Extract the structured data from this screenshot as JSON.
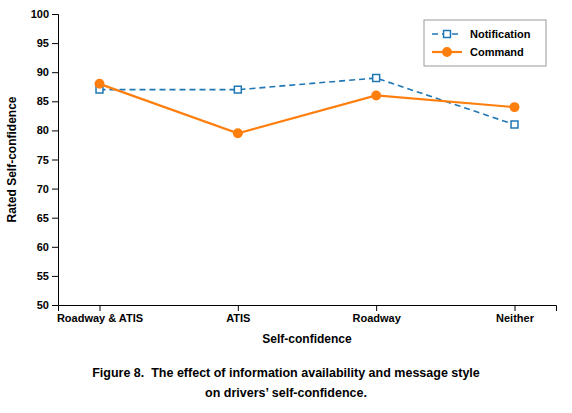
{
  "chart_data": {
    "type": "line",
    "categories": [
      "Roadway & ATIS",
      "ATIS",
      "Roadway",
      "Neither"
    ],
    "series": [
      {
        "name": "Notification",
        "values": [
          87,
          87,
          89,
          81
        ],
        "marker": "square",
        "line_style": "dashed"
      },
      {
        "name": "Command",
        "values": [
          88,
          79.5,
          86,
          84
        ],
        "marker": "circle",
        "line_style": "solid"
      }
    ],
    "xlabel": "Self-confidence",
    "ylabel": "Rated Self-confidence",
    "ylim": [
      50,
      100
    ],
    "yticks": [
      50,
      55,
      60,
      65,
      70,
      75,
      80,
      85,
      90,
      95,
      100
    ],
    "grid": false,
    "legend": "upper right",
    "caption": [
      "Figure 8.  The effect of information availability and message style",
      "on drivers’ self-confidence."
    ]
  }
}
